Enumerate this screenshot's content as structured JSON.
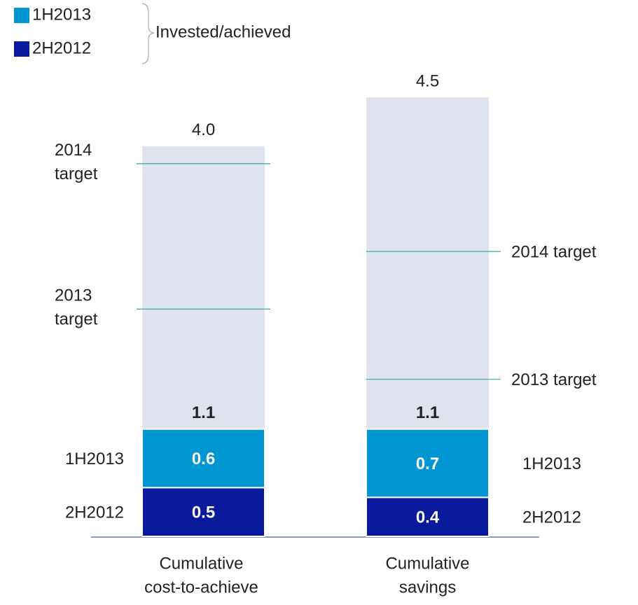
{
  "chart_data": {
    "type": "stacked_bar",
    "categories": [
      [
        "Cumulative",
        "cost-to-achieve"
      ],
      [
        "Cumulative",
        "savings"
      ]
    ],
    "series": [
      {
        "name": "2H2012",
        "color": "#0a1a9c",
        "values": [
          0.5,
          0.4
        ]
      },
      {
        "name": "1H2013",
        "color": "#0096d1",
        "values": [
          0.6,
          0.7
        ]
      }
    ],
    "totals": [
      1.1,
      1.1
    ],
    "background": {
      "color": "#dfe3ee",
      "values": [
        4.0,
        4.5
      ],
      "value_labels": [
        "4.0",
        "4.5"
      ]
    },
    "targets": [
      [
        {
          "label": [
            "2014",
            "target"
          ],
          "value": 3.82
        },
        {
          "label": [
            "2013",
            "target"
          ],
          "value": 2.33
        }
      ],
      [
        {
          "label": [
            "2014 target"
          ],
          "value": 2.92
        },
        {
          "label": [
            "2013 target"
          ],
          "value": 1.61
        }
      ]
    ],
    "target_color": "#3aa7a0",
    "legend_group": "Invested/achieved",
    "ylim": [
      0,
      4.5
    ]
  }
}
